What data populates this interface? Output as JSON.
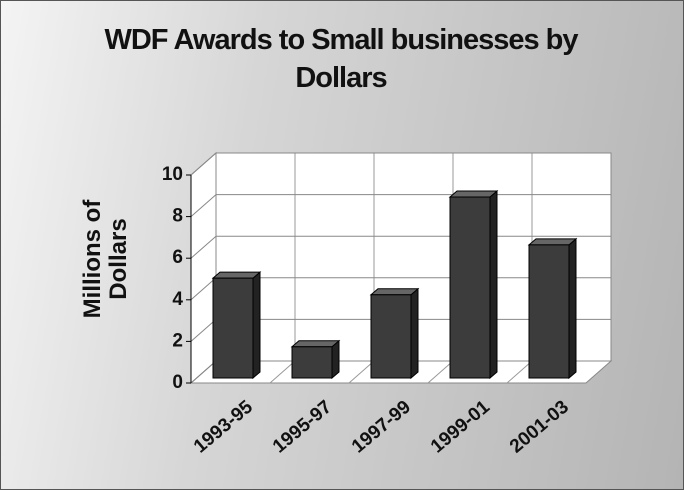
{
  "chart_data": {
    "type": "bar3d",
    "title": "WDF Awards to Small businesses by Dollars",
    "y_label": "Millions of Dollars",
    "categories": [
      "1993-95",
      "1995-97",
      "1997-99",
      "1999-01",
      "2001-03"
    ],
    "values": [
      4.8,
      1.5,
      4.0,
      8.7,
      6.4
    ],
    "color": "#3c3c3c",
    "ylim": [
      0,
      10
    ],
    "yticks": [
      0,
      2,
      4,
      6,
      8,
      10
    ],
    "grid": true
  }
}
